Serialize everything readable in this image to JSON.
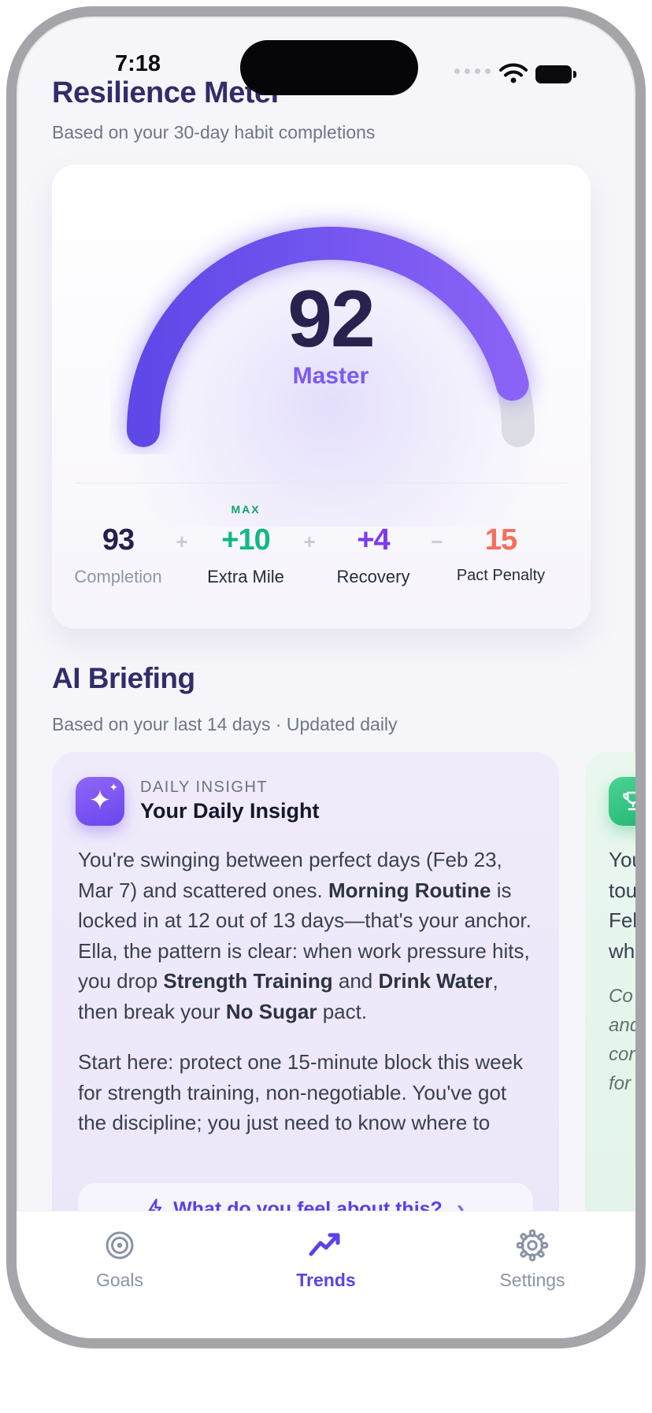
{
  "status_bar": {
    "time": "7:18"
  },
  "header": {
    "title": "Resilience Meter",
    "subtitle": "Based on your 30-day habit completions"
  },
  "gauge": {
    "value": "92",
    "level": "Master",
    "percent": 92,
    "arc_color_start": "#5f48e8",
    "arc_color_end": "#8a63f6",
    "track_color": "#dcdde4"
  },
  "stats": {
    "items": [
      {
        "badge": "",
        "value": "93",
        "label": "Completion",
        "color": "#241f4d"
      },
      {
        "badge": "MAX",
        "value": "+10",
        "label": "Extra Mile",
        "color": "#10b981"
      },
      {
        "badge": "",
        "value": "+4",
        "label": "Recovery",
        "color": "#7c3aed"
      },
      {
        "badge": "",
        "value": "15",
        "label": "Pact Penalty",
        "color": "#f96d5c"
      }
    ],
    "operators": [
      "+",
      "+",
      "−"
    ]
  },
  "briefing": {
    "title": "AI Briefing",
    "subtitle": "Based on your last 14 days · Updated daily"
  },
  "insight_card": {
    "eyebrow": "DAILY INSIGHT",
    "title": "Your Daily Insight",
    "paragraph1_parts": [
      {
        "t": "You're swinging between perfect days (Feb 23, Mar 7) and scattered ones. "
      },
      {
        "t": "Morning Routine",
        "b": true
      },
      {
        "t": " is locked in at 12 out of 13 days—that's your anchor. Ella, the pattern is clear: when work pressure hits, you drop "
      },
      {
        "t": "Strength Training",
        "b": true
      },
      {
        "t": " and "
      },
      {
        "t": "Drink Water",
        "b": true
      },
      {
        "t": ", then break your "
      },
      {
        "t": "No Sugar",
        "b": true
      },
      {
        "t": " pact."
      }
    ],
    "paragraph2": "Start here: protect one 15-minute block this week for strength training, non-negotiable. You've got the discipline; you just need to know where to",
    "button_label": "What do you feel about this?",
    "button_chevron": "›"
  },
  "next_card": {
    "fragments": "You\ntou\nFel\nwh",
    "italic_fragments": "Co\nand\ncor\nfor"
  },
  "tab_bar": {
    "tabs": [
      {
        "label": "Goals"
      },
      {
        "label": "Trends"
      },
      {
        "label": "Settings"
      }
    ],
    "active": "Trends",
    "active_color": "#5b43e8",
    "inactive_color": "#8a93a6"
  }
}
